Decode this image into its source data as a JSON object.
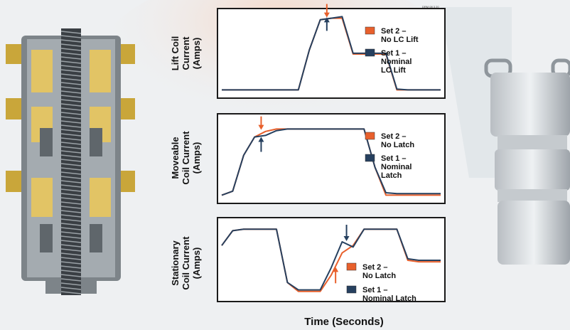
{
  "slide": {
    "tag": "DRM 08 3 20",
    "xlabel": "Time (Seconds)"
  },
  "colors": {
    "set2": "#e8602c",
    "set1": "#26405f",
    "background": "#eef0f2",
    "accent_orange": "#e8602c",
    "brass": "#d9b24a",
    "steel": "#8f969c"
  },
  "chart_data": [
    {
      "type": "line",
      "ylabel": [
        "Lift Coil",
        "Current",
        "(Amps)"
      ],
      "x": [
        0,
        5,
        10,
        15,
        20,
        25,
        30,
        35,
        40,
        45,
        50,
        55,
        60,
        65,
        70,
        75,
        80,
        85,
        90,
        95,
        100
      ],
      "series": [
        {
          "name": "Set 2 – No LC Lift",
          "legend": [
            "Set 2 –",
            "No LC Lift"
          ],
          "color": "#e8602c",
          "values": [
            0.05,
            0.05,
            0.05,
            0.05,
            0.05,
            0.05,
            0.05,
            0.05,
            0.55,
            0.93,
            0.95,
            0.95,
            0.5,
            0.5,
            0.5,
            0.5,
            0.05,
            0.05,
            0.05,
            0.05,
            0.05
          ]
        },
        {
          "name": "Set 1 – Nominal LC Lift",
          "legend": [
            "Set 1 –",
            "Nominal",
            "LC Lift"
          ],
          "color": "#26405f",
          "values": [
            0.05,
            0.05,
            0.05,
            0.05,
            0.05,
            0.05,
            0.05,
            0.05,
            0.55,
            0.93,
            0.95,
            0.97,
            0.51,
            0.51,
            0.51,
            0.51,
            0.06,
            0.05,
            0.05,
            0.05,
            0.05
          ]
        }
      ]
    },
    {
      "type": "line",
      "ylabel": [
        "Moveable",
        "Coil Current",
        "(Amps)"
      ],
      "x": [
        0,
        5,
        10,
        15,
        20,
        25,
        30,
        35,
        40,
        45,
        50,
        55,
        60,
        65,
        70,
        75,
        80,
        85,
        90,
        95,
        100
      ],
      "series": [
        {
          "name": "Set 2 – No Latch",
          "legend": [
            "Set 2 –",
            "No Latch"
          ],
          "color": "#e8602c",
          "values": [
            0.05,
            0.1,
            0.55,
            0.78,
            0.85,
            0.88,
            0.88,
            0.88,
            0.88,
            0.88,
            0.88,
            0.88,
            0.88,
            0.88,
            0.4,
            0.05,
            0.05,
            0.05,
            0.05,
            0.05,
            0.05
          ]
        },
        {
          "name": "Set 1 – Nominal Latch",
          "legend": [
            "Set 1 –",
            "Nominal",
            "Latch"
          ],
          "color": "#26405f",
          "values": [
            0.05,
            0.1,
            0.55,
            0.78,
            0.8,
            0.86,
            0.88,
            0.88,
            0.88,
            0.88,
            0.88,
            0.88,
            0.88,
            0.88,
            0.4,
            0.08,
            0.07,
            0.07,
            0.07,
            0.07,
            0.07
          ]
        }
      ]
    },
    {
      "type": "line",
      "ylabel": [
        "Stationary",
        "Coil Current",
        "(Amps)"
      ],
      "x": [
        0,
        5,
        10,
        15,
        20,
        25,
        30,
        35,
        40,
        45,
        50,
        55,
        60,
        65,
        70,
        75,
        80,
        85,
        90,
        95,
        100
      ],
      "series": [
        {
          "name": "Set 2 – No Latch",
          "legend": [
            "Set 2 –",
            "No Latch"
          ],
          "color": "#e8602c",
          "values": [
            0.7,
            0.9,
            0.92,
            0.92,
            0.92,
            0.92,
            0.2,
            0.08,
            0.08,
            0.08,
            0.3,
            0.6,
            0.7,
            0.92,
            0.92,
            0.92,
            0.92,
            0.5,
            0.48,
            0.48,
            0.48
          ]
        },
        {
          "name": "Set 1 – Nominal Latch",
          "legend": [
            "Set 1 –",
            "Nominal Latch"
          ],
          "color": "#26405f",
          "values": [
            0.7,
            0.9,
            0.92,
            0.92,
            0.92,
            0.92,
            0.2,
            0.1,
            0.1,
            0.1,
            0.4,
            0.75,
            0.68,
            0.92,
            0.92,
            0.92,
            0.92,
            0.52,
            0.5,
            0.5,
            0.5
          ]
        }
      ]
    }
  ]
}
